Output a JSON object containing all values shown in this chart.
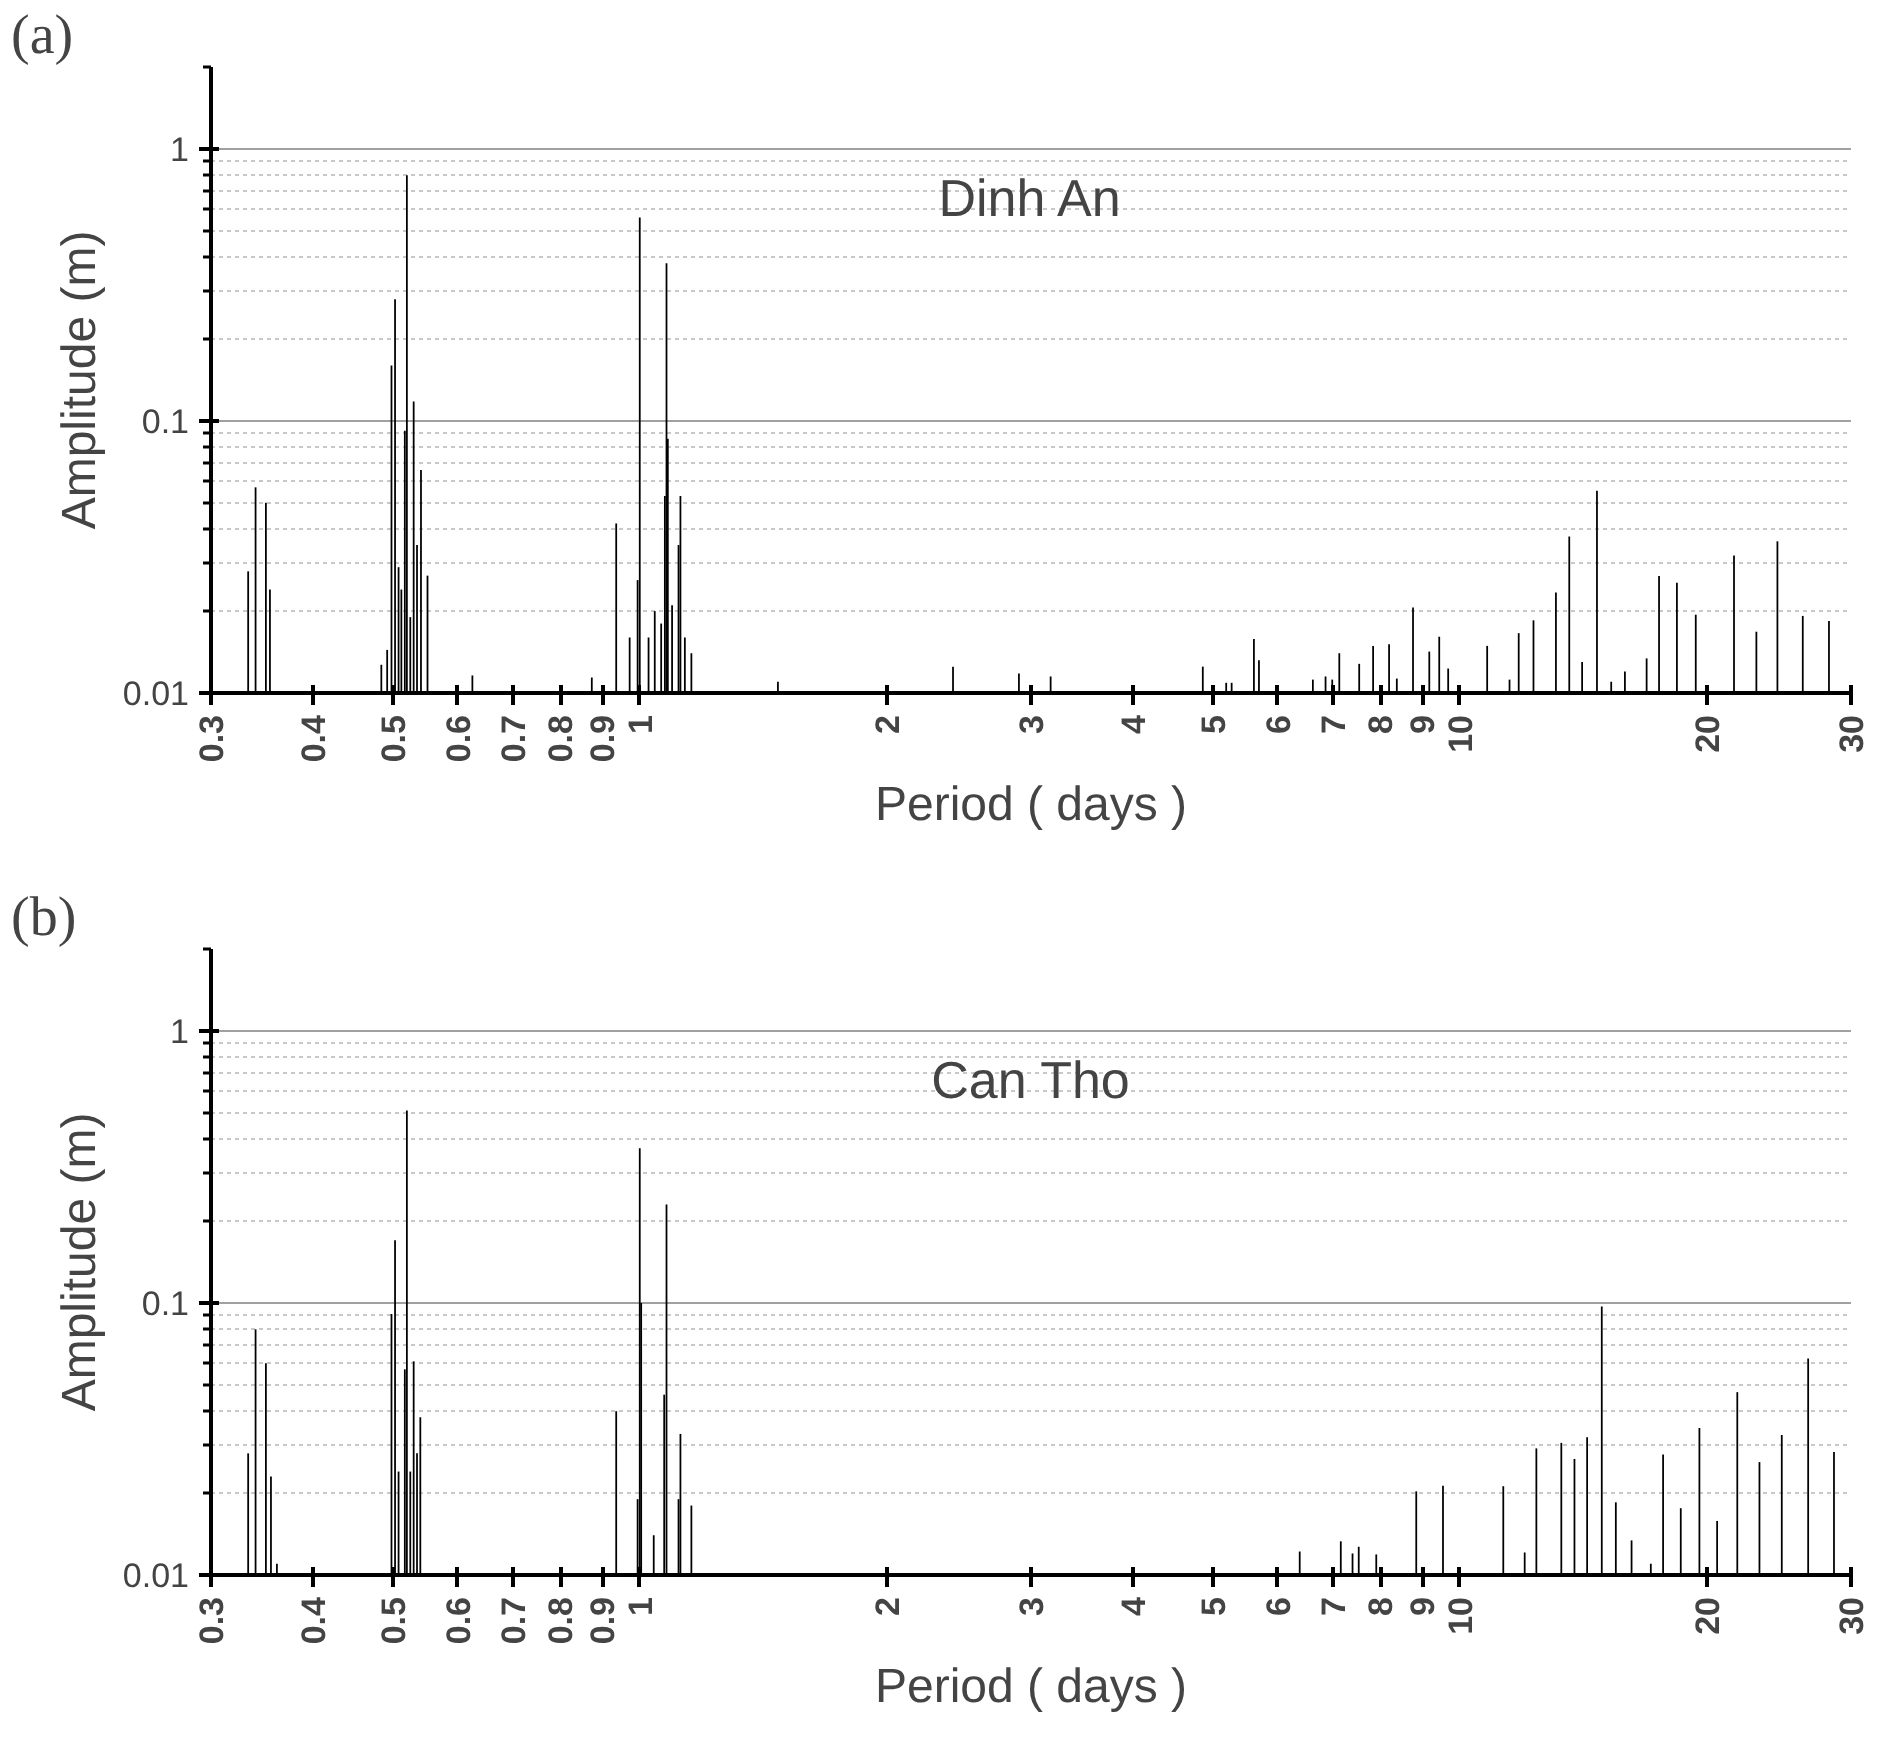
{
  "chart_data": [
    {
      "type": "bar",
      "title": "Dinh An",
      "annotations": [
        "(a)"
      ],
      "xlabel": "Period ( days )",
      "ylabel": "Amplitude (m)",
      "color": "#000000",
      "log": "xy",
      "grid": "y",
      "xlim": [
        0.3,
        30
      ],
      "ylim": [
        0.01,
        2
      ],
      "xticks": [
        0.3,
        0.4,
        0.5,
        0.6,
        0.7,
        0.8,
        0.9,
        1,
        2,
        3,
        4,
        5,
        6,
        7,
        8,
        9,
        10,
        20,
        30
      ],
      "yticks": [
        0.01,
        0.1,
        1
      ],
      "x": [
        0.333,
        0.34,
        0.35,
        0.354,
        0.484,
        0.492,
        0.498,
        0.503,
        0.508,
        0.512,
        0.517,
        0.52,
        0.525,
        0.53,
        0.535,
        0.541,
        0.551,
        0.625,
        0.874,
        0.936,
        0.972,
        0.994,
        1.0,
        1.025,
        1.043,
        1.062,
        1.073,
        1.078,
        1.082,
        1.095,
        1.115,
        1.121,
        1.135,
        1.156,
        1.474,
        2.41,
        2.9,
        3.17,
        4.86,
        5.19,
        5.27,
        5.61,
        5.69,
        6.62,
        6.86,
        6.99,
        7.13,
        7.54,
        7.84,
        8.2,
        8.38,
        8.77,
        9.18,
        9.44,
        9.68,
        10.8,
        11.5,
        11.8,
        12.3,
        13.1,
        13.6,
        14.1,
        14.7,
        15.3,
        15.9,
        16.9,
        17.5,
        18.4,
        19.4,
        21.6,
        23.0,
        24.4,
        26.2,
        28.2
      ],
      "values": [
        0.028,
        0.057,
        0.05,
        0.024,
        0.0127,
        0.0144,
        0.16,
        0.28,
        0.029,
        0.024,
        0.092,
        0.8,
        0.019,
        0.118,
        0.035,
        0.066,
        0.027,
        0.0116,
        0.0114,
        0.042,
        0.016,
        0.026,
        0.56,
        0.016,
        0.02,
        0.018,
        0.053,
        0.38,
        0.086,
        0.021,
        0.035,
        0.053,
        0.016,
        0.014,
        0.011,
        0.0125,
        0.0118,
        0.0115,
        0.0125,
        0.0109,
        0.0109,
        0.0158,
        0.0132,
        0.0112,
        0.0115,
        0.0112,
        0.014,
        0.0128,
        0.0149,
        0.0151,
        0.0113,
        0.0206,
        0.0142,
        0.0161,
        0.0123,
        0.0149,
        0.0112,
        0.0166,
        0.0185,
        0.0234,
        0.0376,
        0.013,
        0.0554,
        0.011,
        0.012,
        0.0134,
        0.0269,
        0.0254,
        0.0194,
        0.032,
        0.0168,
        0.0361,
        0.0192,
        0.0184
      ]
    },
    {
      "type": "bar",
      "title": "Can Tho",
      "annotations": [
        "(b)"
      ],
      "xlabel": "Period ( days )",
      "ylabel": "Amplitude (m)",
      "color": "#000000",
      "log": "xy",
      "grid": "y",
      "xlim": [
        0.3,
        30
      ],
      "ylim": [
        0.01,
        2
      ],
      "xticks": [
        0.3,
        0.4,
        0.5,
        0.6,
        0.7,
        0.8,
        0.9,
        1,
        2,
        3,
        4,
        5,
        6,
        7,
        8,
        9,
        10,
        20,
        30
      ],
      "yticks": [
        0.01,
        0.1,
        1
      ],
      "x": [
        0.333,
        0.34,
        0.35,
        0.355,
        0.361,
        0.498,
        0.503,
        0.508,
        0.517,
        0.52,
        0.525,
        0.53,
        0.535,
        0.54,
        0.936,
        0.994,
        1.0,
        1.004,
        1.04,
        1.071,
        1.078,
        1.115,
        1.121,
        1.156,
        6.38,
        7.16,
        7.4,
        7.53,
        7.91,
        8.85,
        9.54,
        11.3,
        12.0,
        12.4,
        13.3,
        13.8,
        14.3,
        14.9,
        15.5,
        16.2,
        17.1,
        17.7,
        18.6,
        19.6,
        20.6,
        21.8,
        23.2,
        24.7,
        26.6,
        28.6
      ],
      "values": [
        0.028,
        0.08,
        0.06,
        0.023,
        0.011,
        0.091,
        0.17,
        0.024,
        0.057,
        0.51,
        0.024,
        0.061,
        0.028,
        0.038,
        0.04,
        0.019,
        0.37,
        0.1,
        0.014,
        0.046,
        0.23,
        0.019,
        0.033,
        0.018,
        0.0122,
        0.0133,
        0.012,
        0.0127,
        0.0119,
        0.0203,
        0.0213,
        0.0212,
        0.0121,
        0.0292,
        0.0306,
        0.0267,
        0.0321,
        0.097,
        0.0185,
        0.0134,
        0.011,
        0.0277,
        0.0176,
        0.0347,
        0.0158,
        0.047,
        0.026,
        0.0327,
        0.0625,
        0.0283
      ]
    }
  ]
}
